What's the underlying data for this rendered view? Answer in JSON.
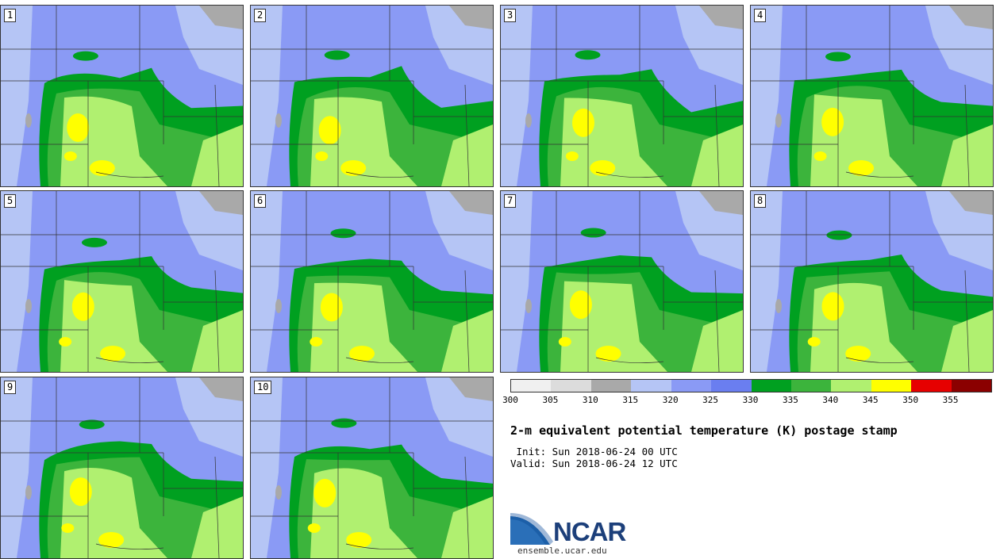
{
  "panels": [
    {
      "label": "1"
    },
    {
      "label": "2"
    },
    {
      "label": "3"
    },
    {
      "label": "4"
    },
    {
      "label": "5"
    },
    {
      "label": "6"
    },
    {
      "label": "7"
    },
    {
      "label": "8"
    },
    {
      "label": "9"
    },
    {
      "label": "10"
    }
  ],
  "colorbar": {
    "colors": [
      "#f0f0f0",
      "#dcdcdc",
      "#a9a9a9",
      "#b5c5f5",
      "#8a9af5",
      "#6a7ef0",
      "#00a020",
      "#3cb43c",
      "#b0f070",
      "#ffff00",
      "#e60000",
      "#8b0000"
    ],
    "ticks": [
      "300",
      "305",
      "310",
      "315",
      "320",
      "325",
      "330",
      "335",
      "340",
      "345",
      "350",
      "355"
    ]
  },
  "info": {
    "title": "2-m equivalent potential temperature (K) postage stamp",
    "init": " Init: Sun 2018-06-24 00 UTC",
    "valid": "Valid: Sun 2018-06-24 12 UTC"
  },
  "logo": {
    "text": "NCAR",
    "url": "ensemble.ucar.edu"
  }
}
